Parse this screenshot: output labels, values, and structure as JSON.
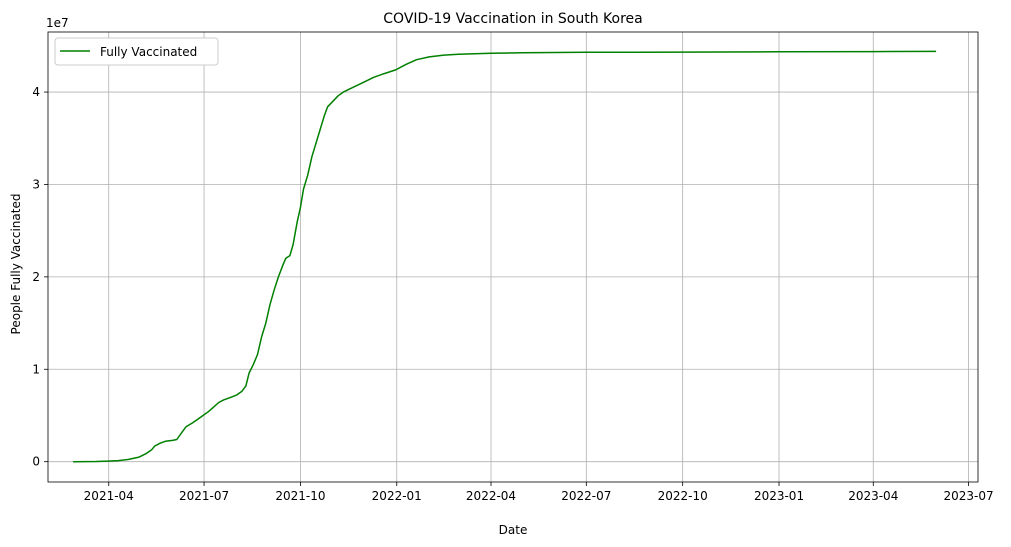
{
  "chart_data": {
    "type": "line",
    "title": "COVID-19 Vaccination in South Korea",
    "xlabel": "Date",
    "ylabel": "People Fully Vaccinated",
    "y_scale_label": "1e7",
    "x_tick_labels": [
      "2021-04",
      "2021-07",
      "2021-10",
      "2022-01",
      "2022-04",
      "2022-07",
      "2022-10",
      "2023-01",
      "2023-04",
      "2023-07"
    ],
    "x_ticks": [
      "2021-04-01",
      "2021-07-01",
      "2021-10-01",
      "2022-01-01",
      "2022-04-01",
      "2022-07-01",
      "2022-10-01",
      "2023-01-01",
      "2023-04-01",
      "2023-07-01"
    ],
    "y_ticks": [
      0,
      10000000,
      20000000,
      30000000,
      40000000
    ],
    "y_tick_labels": [
      "0",
      "1",
      "2",
      "3",
      "4"
    ],
    "xlim": [
      "2021-02-02",
      "2023-07-10"
    ],
    "ylim": [
      -2200000,
      46500000
    ],
    "grid": true,
    "legend": "top-left",
    "series": [
      {
        "name": "Fully Vaccinated",
        "color": "#008000",
        "points": [
          [
            "2021-02-26",
            0
          ],
          [
            "2021-03-10",
            5000
          ],
          [
            "2021-03-20",
            20000
          ],
          [
            "2021-03-31",
            60000
          ],
          [
            "2021-04-10",
            120000
          ],
          [
            "2021-04-20",
            250000
          ],
          [
            "2021-04-30",
            500000
          ],
          [
            "2021-05-07",
            900000
          ],
          [
            "2021-05-12",
            1300000
          ],
          [
            "2021-05-15",
            1700000
          ],
          [
            "2021-05-20",
            2000000
          ],
          [
            "2021-05-25",
            2200000
          ],
          [
            "2021-06-01",
            2300000
          ],
          [
            "2021-06-05",
            2400000
          ],
          [
            "2021-06-10",
            3200000
          ],
          [
            "2021-06-14",
            3800000
          ],
          [
            "2021-06-20",
            4200000
          ],
          [
            "2021-06-25",
            4600000
          ],
          [
            "2021-06-30",
            5000000
          ],
          [
            "2021-07-05",
            5400000
          ],
          [
            "2021-07-10",
            5900000
          ],
          [
            "2021-07-15",
            6400000
          ],
          [
            "2021-07-20",
            6700000
          ],
          [
            "2021-07-25",
            6900000
          ],
          [
            "2021-08-01",
            7200000
          ],
          [
            "2021-08-06",
            7600000
          ],
          [
            "2021-08-10",
            8200000
          ],
          [
            "2021-08-13",
            9600000
          ],
          [
            "2021-08-17",
            10500000
          ],
          [
            "2021-08-21",
            11600000
          ],
          [
            "2021-08-25",
            13500000
          ],
          [
            "2021-08-29",
            15000000
          ],
          [
            "2021-09-02",
            17000000
          ],
          [
            "2021-09-06",
            18600000
          ],
          [
            "2021-09-10",
            20000000
          ],
          [
            "2021-09-14",
            21200000
          ],
          [
            "2021-09-17",
            22000000
          ],
          [
            "2021-09-21",
            22300000
          ],
          [
            "2021-09-24",
            23500000
          ],
          [
            "2021-09-28",
            26000000
          ],
          [
            "2021-10-01",
            27500000
          ],
          [
            "2021-10-04",
            29500000
          ],
          [
            "2021-10-08",
            31000000
          ],
          [
            "2021-10-12",
            33000000
          ],
          [
            "2021-10-16",
            34500000
          ],
          [
            "2021-10-20",
            36000000
          ],
          [
            "2021-10-24",
            37500000
          ],
          [
            "2021-10-27",
            38400000
          ],
          [
            "2021-11-01",
            39000000
          ],
          [
            "2021-11-06",
            39600000
          ],
          [
            "2021-11-11",
            40000000
          ],
          [
            "2021-11-20",
            40500000
          ],
          [
            "2021-12-01",
            41100000
          ],
          [
            "2021-12-10",
            41600000
          ],
          [
            "2021-12-20",
            42000000
          ],
          [
            "2021-12-31",
            42400000
          ],
          [
            "2022-01-10",
            43000000
          ],
          [
            "2022-01-20",
            43500000
          ],
          [
            "2022-02-01",
            43800000
          ],
          [
            "2022-02-15",
            44000000
          ],
          [
            "2022-03-01",
            44100000
          ],
          [
            "2022-04-01",
            44200000
          ],
          [
            "2022-05-01",
            44250000
          ],
          [
            "2022-07-01",
            44300000
          ],
          [
            "2022-10-01",
            44330000
          ],
          [
            "2023-01-01",
            44360000
          ],
          [
            "2023-04-01",
            44380000
          ],
          [
            "2023-05-31",
            44400000
          ]
        ]
      }
    ]
  }
}
